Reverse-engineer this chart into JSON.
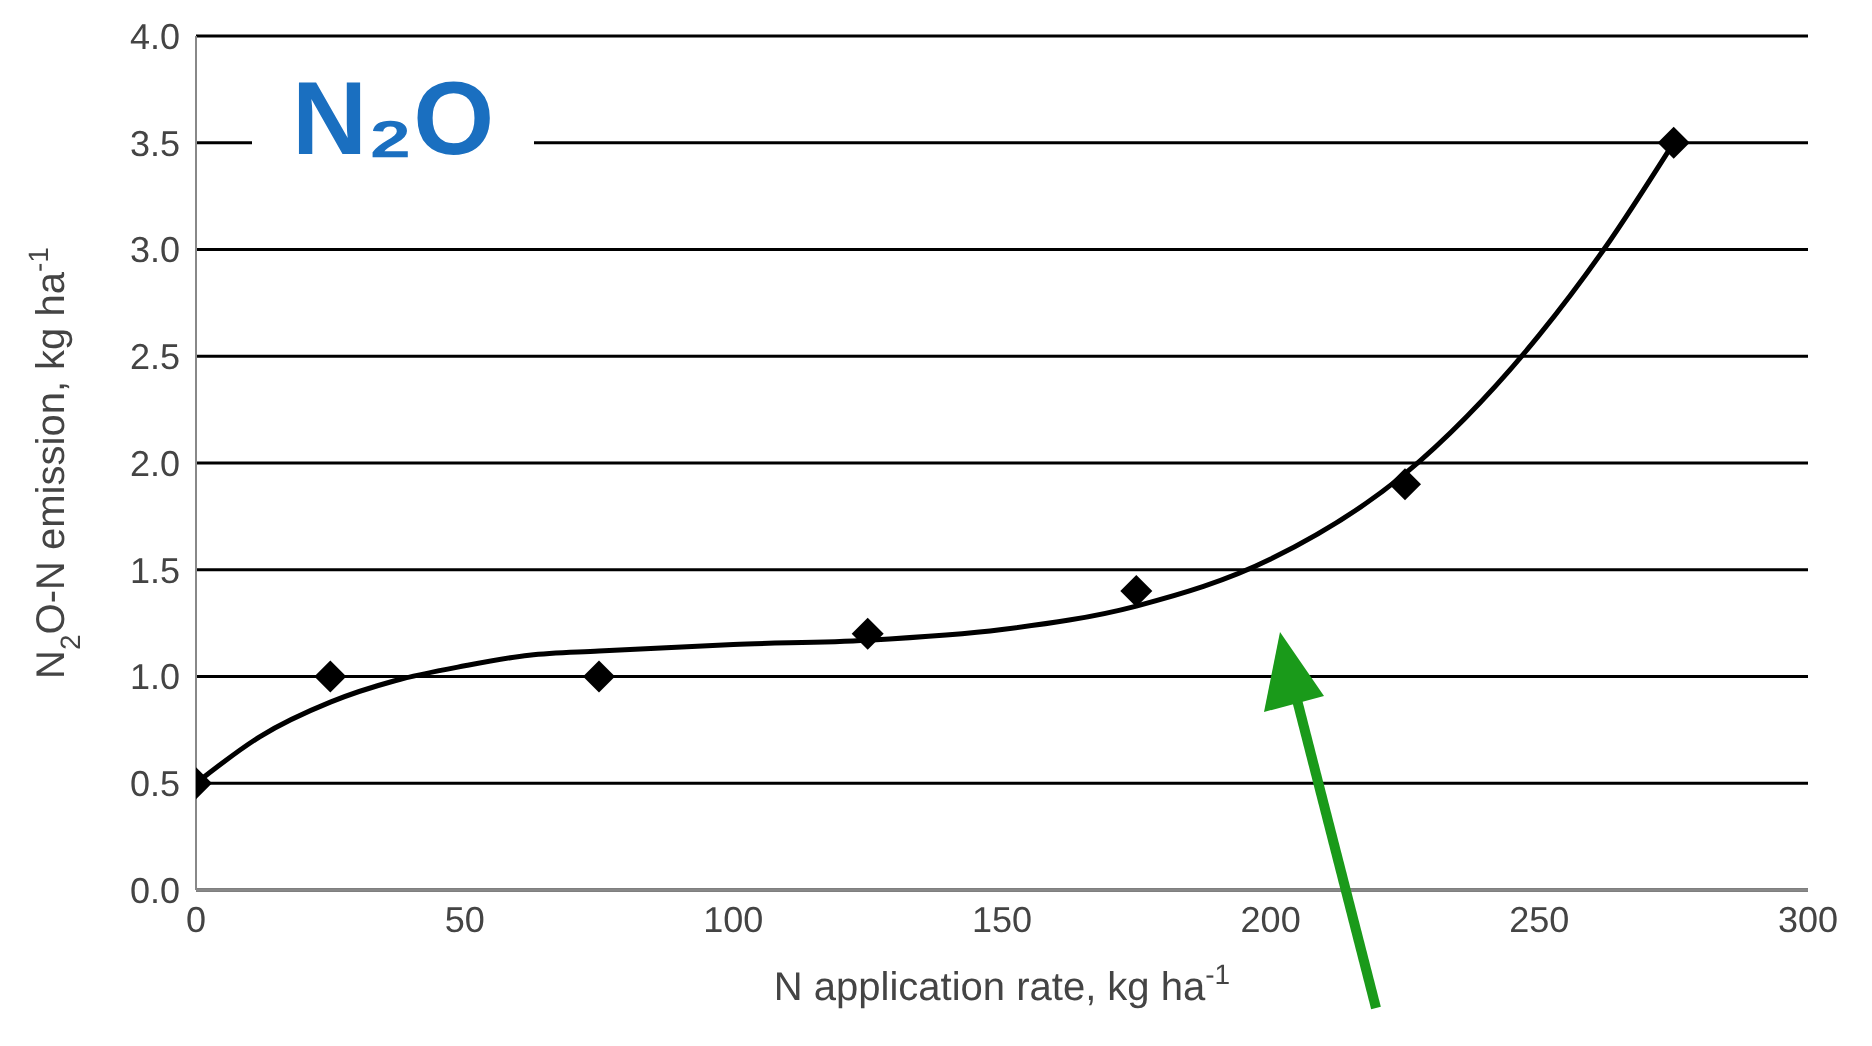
{
  "chart_data": {
    "type": "scatter",
    "annotations": [
      "N₂O"
    ],
    "xlabel": "N application rate, kg ha$^{-1}$",
    "ylabel": "N$_{2}$O-N emission, kg ha$^{-1}$",
    "series": [
      {
        "color": "#000000",
        "marker": "diamond",
        "x": [
          0,
          25,
          75,
          125,
          175,
          225,
          275
        ],
        "values": [
          0.5,
          1.0,
          1.0,
          1.2,
          1.4,
          1.9,
          3.5
        ]
      },
      {
        "type": "line",
        "color": "#000000",
        "marker": "none",
        "line_style": "solid",
        "x": [
          0,
          12,
          25,
          37,
          50,
          62,
          75,
          100,
          125,
          150,
          175,
          200,
          225,
          250,
          262,
          275
        ],
        "values": [
          0.5,
          0.72,
          0.88,
          0.98,
          1.05,
          1.1,
          1.12,
          1.15,
          1.17,
          1.22,
          1.33,
          1.55,
          1.95,
          2.6,
          3.0,
          3.5
        ]
      }
    ],
    "xlim": [
      0,
      300
    ],
    "xticks": [
      0,
      50,
      100,
      150,
      200,
      250,
      300
    ],
    "ylim": [
      0,
      4
    ],
    "yticks": [
      {
        "value": 0,
        "label": "0.0"
      },
      {
        "value": 0.5,
        "label": "0.5"
      },
      {
        "value": 1,
        "label": "1.0"
      },
      {
        "value": 1.5,
        "label": "1.5"
      },
      {
        "value": 2,
        "label": "2.0"
      },
      {
        "value": 2.5,
        "label": "2.5"
      },
      {
        "value": 3,
        "label": "3.0"
      },
      {
        "value": 3.5,
        "label": "3.5"
      },
      {
        "value": 4,
        "label": "4.0"
      }
    ],
    "grid": "y"
  }
}
